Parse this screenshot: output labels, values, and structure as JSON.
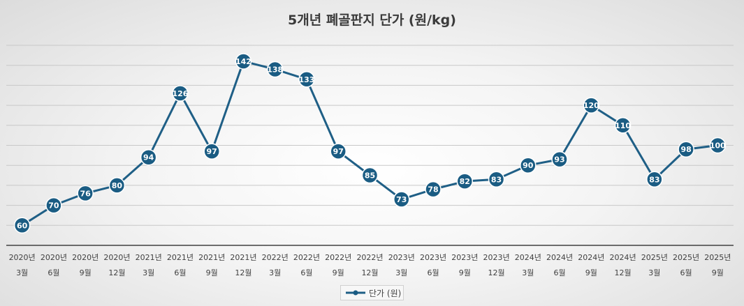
{
  "chart_data": {
    "type": "line",
    "title": "5개년 폐골판지 단가 (원/kg)",
    "categories": [
      [
        "2020년",
        "3월"
      ],
      [
        "2020년",
        "6월"
      ],
      [
        "2020년",
        "9월"
      ],
      [
        "2020년",
        "12월"
      ],
      [
        "2021년",
        "3월"
      ],
      [
        "2021년",
        "6월"
      ],
      [
        "2021년",
        "9월"
      ],
      [
        "2021년",
        "12월"
      ],
      [
        "2022년",
        "3월"
      ],
      [
        "2022년",
        "6월"
      ],
      [
        "2022년",
        "9월"
      ],
      [
        "2022년",
        "12월"
      ],
      [
        "2023년",
        "3월"
      ],
      [
        "2023년",
        "6월"
      ],
      [
        "2023년",
        "9월"
      ],
      [
        "2023년",
        "12월"
      ],
      [
        "2024년",
        "3월"
      ],
      [
        "2024년",
        "6월"
      ],
      [
        "2024년",
        "9월"
      ],
      [
        "2024년",
        "12월"
      ],
      [
        "2025년",
        "3월"
      ],
      [
        "2025년",
        "6월"
      ],
      [
        "2025년",
        "9월"
      ]
    ],
    "series": [
      {
        "name": "단가 (원)",
        "values": [
          60,
          70,
          76,
          80,
          94,
          126,
          97,
          142,
          138,
          133,
          97,
          85,
          73,
          78,
          82,
          83,
          90,
          93,
          120,
          110,
          83,
          98,
          100
        ]
      }
    ],
    "ylim": [
      50,
      150
    ],
    "grid": true,
    "legend_position": "bottom",
    "data_labels": true,
    "xlabel": "",
    "ylabel": "",
    "colors": {
      "line": "#1f5f86",
      "marker_fill": "#1a5c83",
      "marker_border": "#ffffff",
      "label_text": "#ffffff",
      "grid": "#c8c8c8",
      "axis": "#404040",
      "tick_text": "#404040"
    }
  }
}
